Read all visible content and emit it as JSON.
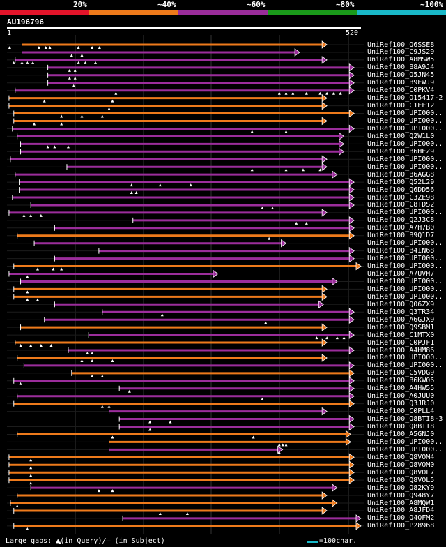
{
  "chart_data": {
    "type": "alignment-overview",
    "query": {
      "name": "AU196796",
      "start": "1",
      "end": "520",
      "length": 520
    },
    "identity_legend": [
      {
        "label": "20%",
        "color": "#e3142a"
      },
      {
        "label": "~40%",
        "color": "#ee7a1b"
      },
      {
        "label": "~60%",
        "color": "#9b2d9b"
      },
      {
        "label": "~80%",
        "color": "#1a9a1a"
      },
      {
        "label": "~100%",
        "color": "#19b8c8"
      }
    ],
    "hits": [
      {
        "label": "UniRef100_Q6SSE8",
        "color": "orange",
        "start": 22,
        "end": 470,
        "gaps": [
          4,
          47,
          57,
          63,
          105,
          125,
          136
        ]
      },
      {
        "label": "UniRef100_C9JS29",
        "color": "purple",
        "start": 22,
        "end": 430,
        "gaps": [
          95,
          110
        ]
      },
      {
        "label": "UniRef100_A8MSW5",
        "color": "purple",
        "start": 12,
        "end": 470,
        "gaps": [
          10,
          22,
          30,
          38,
          105,
          115,
          130
        ]
      },
      {
        "label": "UniRef100_B8A9J4",
        "color": "purple",
        "start": 60,
        "end": 510,
        "gaps": [
          92,
          100
        ]
      },
      {
        "label": "UniRef100_Q5JN45",
        "color": "purple",
        "start": 60,
        "end": 510,
        "gaps": [
          92,
          100
        ]
      },
      {
        "label": "UniRef100_B9EWJ9",
        "color": "purple",
        "start": 60,
        "end": 510,
        "gaps": [
          98
        ]
      },
      {
        "label": "UniRef100_C0PKV4",
        "color": "purple",
        "start": 12,
        "end": 510,
        "gaps": [
          160,
          400,
          410,
          420,
          440,
          460,
          470,
          480,
          490
        ]
      },
      {
        "label": "UniRef100_O15417-2",
        "color": "orange",
        "start": 3,
        "end": 470,
        "gaps": [
          55,
          155
        ]
      },
      {
        "label": "UniRef100_C1EF12",
        "color": "orange",
        "start": 3,
        "end": 470,
        "gaps": [
          150
        ]
      },
      {
        "label": "UniRef100_UPI000..",
        "color": "orange",
        "start": 10,
        "end": 510,
        "gaps": [
          80,
          110,
          140
        ]
      },
      {
        "label": "UniRef100_UPI000..",
        "color": "orange",
        "start": 10,
        "end": 470,
        "gaps": [
          40,
          80
        ]
      },
      {
        "label": "UniRef100_UPI000..",
        "color": "purple",
        "start": 8,
        "end": 510,
        "gaps": [
          360,
          410
        ]
      },
      {
        "label": "UniRef100_Q2W1L0",
        "color": "purple",
        "start": 15,
        "end": 495,
        "gaps": []
      },
      {
        "label": "UniRef100_UPI000..",
        "color": "purple",
        "start": 20,
        "end": 495,
        "gaps": [
          60,
          70,
          90
        ]
      },
      {
        "label": "UniRef100_B6HEZ9",
        "color": "purple",
        "start": 20,
        "end": 495,
        "gaps": []
      },
      {
        "label": "UniRef100_UPI000..",
        "color": "purple",
        "start": 5,
        "end": 470,
        "gaps": []
      },
      {
        "label": "UniRef100_UPI000..",
        "color": "purple",
        "start": 88,
        "end": 470,
        "gaps": [
          360,
          410,
          435,
          460
        ]
      },
      {
        "label": "UniRef100_B6AGG8",
        "color": "purple",
        "start": 12,
        "end": 485,
        "gaps": []
      },
      {
        "label": "UniRef100_Q52L29",
        "color": "purple",
        "start": 18,
        "end": 510,
        "gaps": [
          183,
          225,
          270
        ]
      },
      {
        "label": "UniRef100_Q6DD56",
        "color": "purple",
        "start": 18,
        "end": 510,
        "gaps": [
          183,
          190
        ]
      },
      {
        "label": "UniRef100_C3ZE98",
        "color": "purple",
        "start": 8,
        "end": 510,
        "gaps": []
      },
      {
        "label": "UniRef100_C8TDS2",
        "color": "purple",
        "start": 35,
        "end": 510,
        "gaps": [
          375,
          390
        ]
      },
      {
        "label": "UniRef100_UPI000..",
        "color": "purple",
        "start": 3,
        "end": 470,
        "gaps": [
          25,
          35,
          50
        ]
      },
      {
        "label": "UniRef100_Q2J3C8",
        "color": "purple",
        "start": 185,
        "end": 510,
        "gaps": [
          425,
          440
        ]
      },
      {
        "label": "UniRef100_A7H7B0",
        "color": "purple",
        "start": 70,
        "end": 510,
        "gaps": []
      },
      {
        "label": "UniRef100_B9Q1D7",
        "color": "orange",
        "start": 15,
        "end": 510,
        "gaps": [
          385
        ]
      },
      {
        "label": "UniRef100_UPI000..",
        "color": "purple",
        "start": 40,
        "end": 410,
        "gaps": []
      },
      {
        "label": "UniRef100_B4IN68",
        "color": "purple",
        "start": 135,
        "end": 510,
        "gaps": []
      },
      {
        "label": "UniRef100_UPI000..",
        "color": "purple",
        "start": 70,
        "end": 510,
        "gaps": []
      },
      {
        "label": "UniRef100_UPI000..",
        "color": "orange",
        "start": 10,
        "end": 520,
        "gaps": [
          45,
          68,
          80
        ]
      },
      {
        "label": "UniRef100_A7UVH7",
        "color": "purple",
        "start": 3,
        "end": 310,
        "gaps": [
          30
        ]
      },
      {
        "label": "UniRef100_UPI000..",
        "color": "purple",
        "start": 20,
        "end": 485,
        "gaps": []
      },
      {
        "label": "UniRef100_UPI000..",
        "color": "orange",
        "start": 10,
        "end": 470,
        "gaps": [
          30
        ]
      },
      {
        "label": "UniRef100_UPI000..",
        "color": "orange",
        "start": 10,
        "end": 470,
        "gaps": [
          30,
          45
        ]
      },
      {
        "label": "UniRef100_Q06ZX9",
        "color": "purple",
        "start": 70,
        "end": 465,
        "gaps": []
      },
      {
        "label": "UniRef100_Q3TR34",
        "color": "purple",
        "start": 140,
        "end": 510,
        "gaps": [
          228
        ]
      },
      {
        "label": "UniRef100_A6GJX9",
        "color": "purple",
        "start": 55,
        "end": 510,
        "gaps": [
          380
        ]
      },
      {
        "label": "UniRef100_Q9SBM1",
        "color": "orange",
        "start": 20,
        "end": 470,
        "gaps": []
      },
      {
        "label": "UniRef100_C1MTX0",
        "color": "purple",
        "start": 120,
        "end": 510,
        "gaps": [
          455,
          470,
          485,
          495
        ]
      },
      {
        "label": "UniRef100_C0PJF1",
        "color": "orange",
        "start": 12,
        "end": 470,
        "gaps": [
          20,
          35,
          50,
          65
        ]
      },
      {
        "label": "UniRef100_A4HM86",
        "color": "purple",
        "start": 90,
        "end": 510,
        "gaps": [
          118,
          125
        ]
      },
      {
        "label": "UniRef100_UPI000..",
        "color": "orange",
        "start": 15,
        "end": 470,
        "gaps": [
          110,
          125,
          155
        ]
      },
      {
        "label": "UniRef100_UPI000..",
        "color": "purple",
        "start": 25,
        "end": 510,
        "gaps": []
      },
      {
        "label": "UniRef100_C5VDG9",
        "color": "orange",
        "start": 95,
        "end": 510,
        "gaps": [
          125,
          140
        ]
      },
      {
        "label": "UniRef100_B6KW06",
        "color": "purple",
        "start": 10,
        "end": 510,
        "gaps": [
          20
        ]
      },
      {
        "label": "UniRef100_A4HW55",
        "color": "purple",
        "start": 165,
        "end": 510,
        "gaps": [
          180
        ]
      },
      {
        "label": "UniRef100_A0JUU0",
        "color": "purple",
        "start": 15,
        "end": 510,
        "gaps": [
          375
        ]
      },
      {
        "label": "UniRef100_Q3JRJ0",
        "color": "orange",
        "start": 10,
        "end": 510,
        "gaps": [
          140,
          150
        ]
      },
      {
        "label": "UniRef100_C0PLL4",
        "color": "purple",
        "start": 150,
        "end": 470,
        "gaps": []
      },
      {
        "label": "UniRef100_Q8BTI8-3",
        "color": "purple",
        "start": 165,
        "end": 510,
        "gaps": [
          210,
          240
        ]
      },
      {
        "label": "UniRef100_Q8BTI8",
        "color": "purple",
        "start": 165,
        "end": 510,
        "gaps": [
          210
        ]
      },
      {
        "label": "UniRef100_A5GNJ0",
        "color": "orange",
        "start": 15,
        "end": 505,
        "gaps": [
          155,
          362
        ]
      },
      {
        "label": "UniRef100_UPI000..",
        "color": "orange",
        "start": 150,
        "end": 505,
        "gaps": [
          400,
          405,
          410
        ]
      },
      {
        "label": "UniRef100_UPI000..",
        "color": "purple",
        "start": 150,
        "end": 405,
        "gaps": [
          400
        ]
      },
      {
        "label": "UniRef100_Q8VOM4",
        "color": "orange",
        "start": 3,
        "end": 510,
        "gaps": [
          35
        ]
      },
      {
        "label": "UniRef100_Q8VOM0",
        "color": "orange",
        "start": 3,
        "end": 510,
        "gaps": [
          35
        ]
      },
      {
        "label": "UniRef100_Q8VOL7",
        "color": "orange",
        "start": 3,
        "end": 510,
        "gaps": [
          35
        ]
      },
      {
        "label": "UniRef100_Q8VOL5",
        "color": "orange",
        "start": 3,
        "end": 510,
        "gaps": [
          35
        ]
      },
      {
        "label": "UniRef100_Q82KY9",
        "color": "purple",
        "start": 35,
        "end": 485,
        "gaps": [
          135,
          155
        ]
      },
      {
        "label": "UniRef100_Q948Y7",
        "color": "orange",
        "start": 15,
        "end": 470,
        "gaps": []
      },
      {
        "label": "UniRef100_A8MQW1",
        "color": "orange",
        "start": 5,
        "end": 485,
        "gaps": [
          15
        ]
      },
      {
        "label": "UniRef100_A8JFD4",
        "color": "orange",
        "start": 10,
        "end": 470,
        "gaps": [
          225,
          265
        ]
      },
      {
        "label": "UniRef100_Q4QFM2",
        "color": "purple",
        "start": 170,
        "end": 520,
        "gaps": []
      },
      {
        "label": "UniRef100_P28968",
        "color": "orange",
        "start": 10,
        "end": 520,
        "gaps": [
          30
        ]
      }
    ]
  },
  "legend": {
    "footer": "Large gaps: ▲(in Query)/– (in Subject)",
    "scale": "=100char."
  },
  "colors": {
    "orange": "#ee7a1b",
    "purple": "#9b2d9b",
    "cyan": "#17b8c8"
  }
}
